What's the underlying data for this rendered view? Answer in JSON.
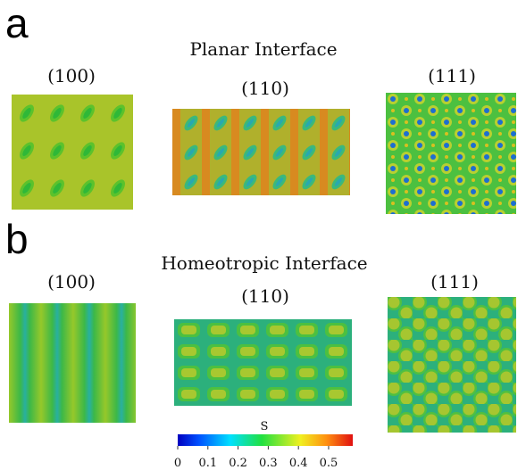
{
  "panels": [
    {
      "label": "a",
      "title": "Planar Interface",
      "views": [
        "(100)",
        "(110)",
        "(111)"
      ]
    },
    {
      "label": "b",
      "title": "Homeotropic Interface",
      "views": [
        "(100)",
        "(110)",
        "(111)"
      ]
    }
  ],
  "colorbar": {
    "label": "S",
    "lim": [
      0,
      0.58
    ],
    "ticks": [
      0,
      0.1,
      0.2,
      0.3,
      0.4,
      0.5
    ]
  }
}
